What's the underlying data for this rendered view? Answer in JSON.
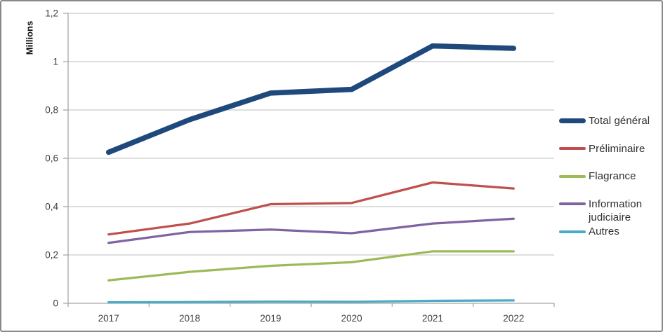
{
  "chart_data": {
    "type": "line",
    "title": "",
    "ylabel": "Millions",
    "xlabel": "",
    "categories": [
      "2017",
      "2018",
      "2019",
      "2020",
      "2021",
      "2022"
    ],
    "ylim": [
      0,
      1.2
    ],
    "ytick_values": [
      0,
      0.2,
      0.4,
      0.6,
      0.8,
      1,
      1.2
    ],
    "ytick_labels": [
      "0",
      "0,2",
      "0,4",
      "0,6",
      "0,8",
      "1",
      "1,2"
    ],
    "grid": true,
    "legend_position": "right",
    "colors": {
      "gridline": "#c9c9c9",
      "axis": "#a6a6a6",
      "tick_text": "#3d3d3d"
    },
    "series": [
      {
        "name": "Total général",
        "color": "#1F497D",
        "line_width": 7.5,
        "values": [
          0.625,
          0.76,
          0.87,
          0.885,
          1.065,
          1.055
        ]
      },
      {
        "name": "Préliminaire",
        "color": "#C0504D",
        "line_width": 3.25,
        "values": [
          0.285,
          0.33,
          0.41,
          0.415,
          0.5,
          0.475
        ]
      },
      {
        "name": "Flagrance",
        "color": "#9BBB59",
        "line_width": 3.25,
        "values": [
          0.095,
          0.13,
          0.155,
          0.17,
          0.215,
          0.215
        ]
      },
      {
        "name": "Information judiciaire",
        "color": "#8064A2",
        "line_width": 3.25,
        "values": [
          0.25,
          0.295,
          0.305,
          0.29,
          0.33,
          0.35
        ]
      },
      {
        "name": "Autres",
        "color": "#4BACC6",
        "line_width": 3.25,
        "values": [
          0.004,
          0.005,
          0.007,
          0.006,
          0.01,
          0.012
        ]
      }
    ]
  }
}
